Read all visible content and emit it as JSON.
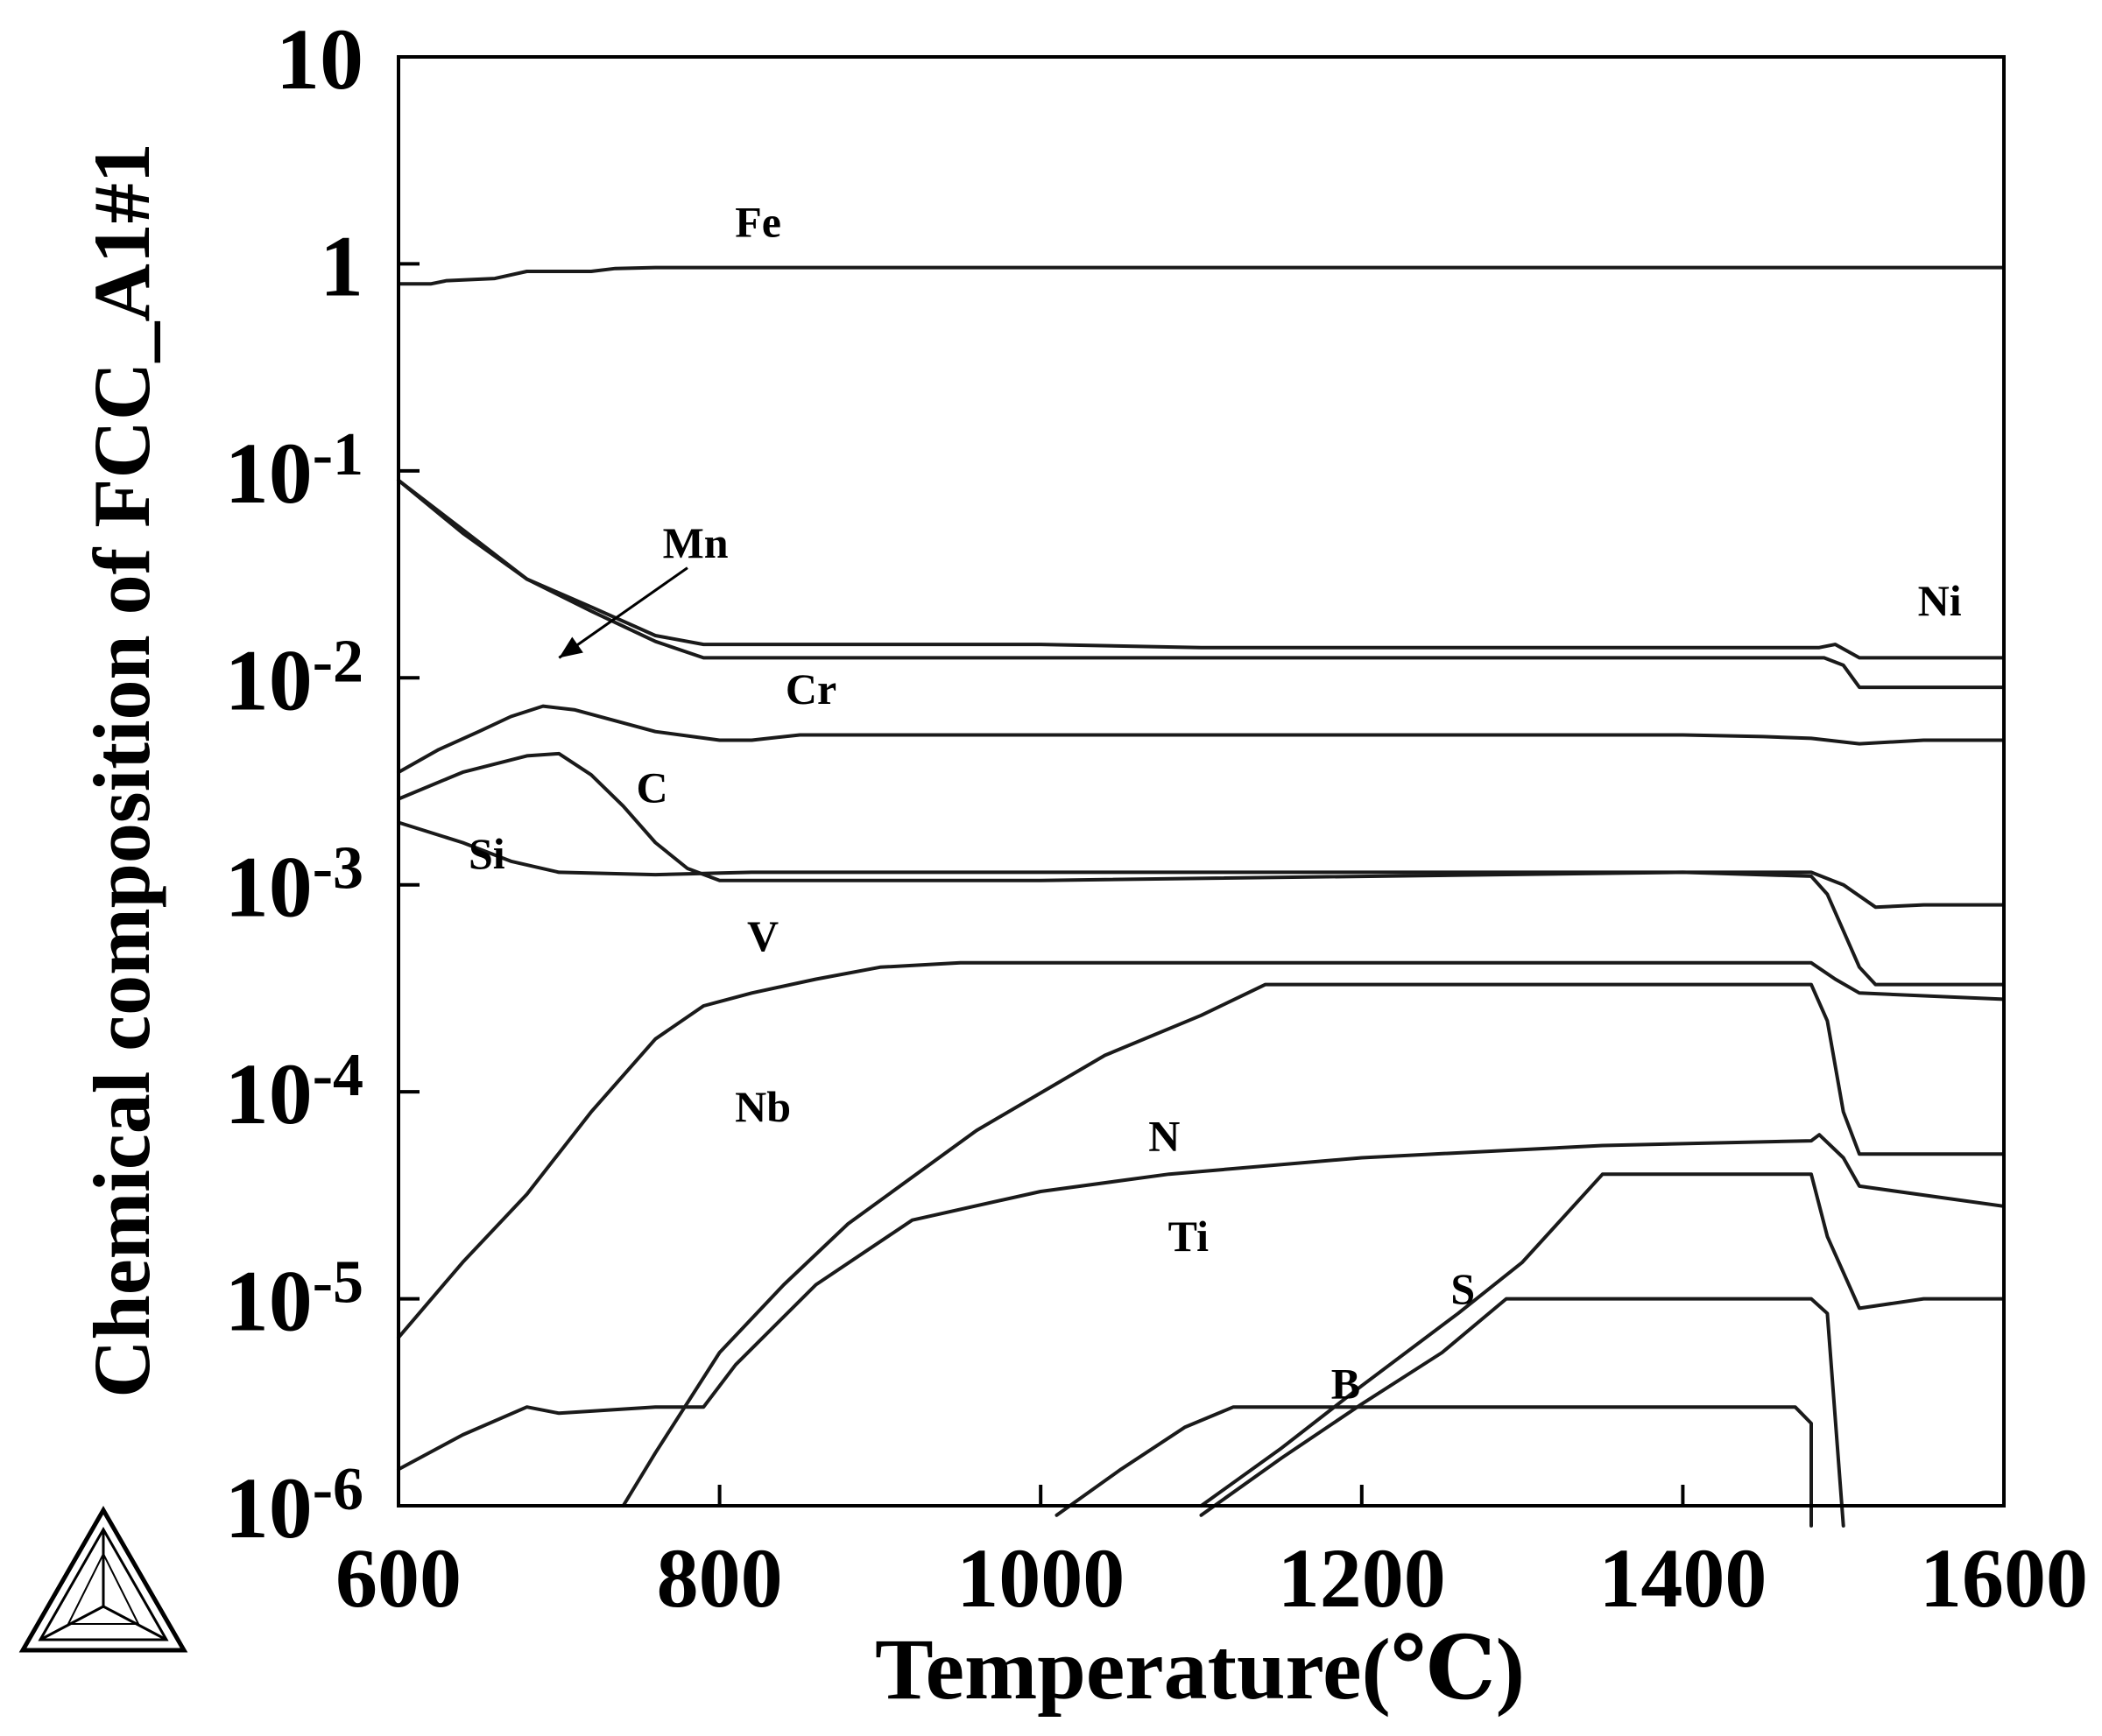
{
  "chart_data": {
    "type": "line",
    "xlabel": "Temperature(℃)",
    "ylabel": "Chemical composition of FCC_A1#1",
    "xlim": [
      600,
      1600
    ],
    "ylim": [
      1e-06,
      10
    ],
    "yscale": "log",
    "grid": false,
    "x_ticks": [
      {
        "value": 600,
        "label": "600"
      },
      {
        "value": 800,
        "label": "800"
      },
      {
        "value": 1000,
        "label": "1000"
      },
      {
        "value": 1200,
        "label": "1200"
      },
      {
        "value": 1400,
        "label": "1400"
      },
      {
        "value": 1600,
        "label": "1600"
      }
    ],
    "y_ticks": [
      {
        "value": 10,
        "base": "10",
        "exp": ""
      },
      {
        "value": 1,
        "base": "1",
        "exp": ""
      },
      {
        "value": 0.1,
        "base": "10",
        "exp": "-1"
      },
      {
        "value": 0.01,
        "base": "10",
        "exp": "-2"
      },
      {
        "value": 0.001,
        "base": "10",
        "exp": "-3"
      },
      {
        "value": 0.0001,
        "base": "10",
        "exp": "-4"
      },
      {
        "value": 1e-05,
        "base": "10",
        "exp": "-5"
      },
      {
        "value": 1e-06,
        "base": "10",
        "exp": "-6"
      }
    ],
    "series": [
      {
        "name": "Fe",
        "label_pos": [
          824,
          1.35
        ],
        "points": [
          [
            600,
            0.8
          ],
          [
            620,
            0.8
          ],
          [
            630,
            0.83
          ],
          [
            660,
            0.85
          ],
          [
            680,
            0.92
          ],
          [
            720,
            0.92
          ],
          [
            735,
            0.95
          ],
          [
            760,
            0.96
          ],
          [
            1600,
            0.96
          ]
        ]
      },
      {
        "name": "Ni",
        "label_pos": [
          1560,
          0.02
        ],
        "points": [
          [
            600,
            0.09
          ],
          [
            640,
            0.05
          ],
          [
            680,
            0.03
          ],
          [
            720,
            0.022
          ],
          [
            760,
            0.016
          ],
          [
            790,
            0.0145
          ],
          [
            1000,
            0.0145
          ],
          [
            1100,
            0.014
          ],
          [
            1485,
            0.014
          ],
          [
            1495,
            0.0145
          ],
          [
            1510,
            0.0125
          ],
          [
            1600,
            0.0125
          ]
        ]
      },
      {
        "name": "Mn",
        "label_pos": [
          785,
          0.038
        ],
        "arrow_from": [
          780,
          0.034
        ],
        "arrow_to": [
          700,
          0.0125
        ],
        "points": [
          [
            600,
            0.09
          ],
          [
            640,
            0.052
          ],
          [
            680,
            0.03
          ],
          [
            720,
            0.021
          ],
          [
            760,
            0.015
          ],
          [
            790,
            0.0125
          ],
          [
            1000,
            0.0125
          ],
          [
            1488,
            0.0125
          ],
          [
            1500,
            0.0115
          ],
          [
            1510,
            0.009
          ],
          [
            1600,
            0.009
          ]
        ]
      },
      {
        "name": "Cr",
        "label_pos": [
          857,
          0.0075
        ],
        "points": [
          [
            600,
            0.0035
          ],
          [
            625,
            0.0045
          ],
          [
            650,
            0.0055
          ],
          [
            670,
            0.0065
          ],
          [
            690,
            0.0073
          ],
          [
            710,
            0.007
          ],
          [
            760,
            0.0055
          ],
          [
            800,
            0.005
          ],
          [
            820,
            0.005
          ],
          [
            850,
            0.0053
          ],
          [
            1400,
            0.0053
          ],
          [
            1450,
            0.0052
          ],
          [
            1480,
            0.0051
          ],
          [
            1510,
            0.0048
          ],
          [
            1550,
            0.005
          ],
          [
            1600,
            0.005
          ]
        ]
      },
      {
        "name": "C",
        "label_pos": [
          758,
          0.0025
        ],
        "points": [
          [
            600,
            0.0026
          ],
          [
            640,
            0.0035
          ],
          [
            680,
            0.0042
          ],
          [
            700,
            0.0043
          ],
          [
            720,
            0.0034
          ],
          [
            740,
            0.0024
          ],
          [
            760,
            0.0016
          ],
          [
            780,
            0.0012
          ],
          [
            800,
            0.00105
          ],
          [
            1000,
            0.00105
          ],
          [
            1400,
            0.00115
          ],
          [
            1480,
            0.0011
          ],
          [
            1490,
            0.0009
          ],
          [
            1510,
            0.0004
          ],
          [
            1520,
            0.00033
          ],
          [
            1600,
            0.00033
          ]
        ]
      },
      {
        "name": "Si",
        "label_pos": [
          655,
          0.0012
        ],
        "points": [
          [
            600,
            0.002
          ],
          [
            640,
            0.0016
          ],
          [
            670,
            0.0013
          ],
          [
            700,
            0.00115
          ],
          [
            760,
            0.00112
          ],
          [
            820,
            0.00115
          ],
          [
            1000,
            0.00115
          ],
          [
            1200,
            0.00115
          ],
          [
            1480,
            0.00115
          ],
          [
            1500,
            0.001
          ],
          [
            1520,
            0.00078
          ],
          [
            1550,
            0.0008
          ],
          [
            1600,
            0.0008
          ]
        ]
      },
      {
        "name": "V",
        "label_pos": [
          827,
          0.00048
        ],
        "points": [
          [
            600,
            6.5e-06
          ],
          [
            640,
            1.5e-05
          ],
          [
            680,
            3.2e-05
          ],
          [
            720,
            8e-05
          ],
          [
            760,
            0.00018
          ],
          [
            790,
            0.00026
          ],
          [
            820,
            0.0003
          ],
          [
            860,
            0.00035
          ],
          [
            900,
            0.0004
          ],
          [
            950,
            0.00042
          ],
          [
            1480,
            0.00042
          ],
          [
            1495,
            0.00035
          ],
          [
            1510,
            0.0003
          ],
          [
            1600,
            0.00028
          ]
        ]
      },
      {
        "name": "Nb",
        "label_pos": [
          827,
          7.2e-05
        ],
        "points": [
          [
            740,
            1e-06
          ],
          [
            760,
            1.8e-06
          ],
          [
            800,
            5.5e-06
          ],
          [
            840,
            1.17e-05
          ],
          [
            880,
            2.3e-05
          ],
          [
            960,
            6.5e-05
          ],
          [
            1040,
            0.00015
          ],
          [
            1100,
            0.000234
          ],
          [
            1140,
            0.00033
          ],
          [
            1400,
            0.00033
          ],
          [
            1480,
            0.00033
          ],
          [
            1490,
            0.00022
          ],
          [
            1500,
            8e-05
          ],
          [
            1510,
            5e-05
          ],
          [
            1600,
            5e-05
          ]
        ]
      },
      {
        "name": "N",
        "label_pos": [
          1077,
          5.2e-05
        ],
        "points": [
          [
            600,
            1.5e-06
          ],
          [
            640,
            2.2e-06
          ],
          [
            680,
            3e-06
          ],
          [
            700,
            2.8e-06
          ],
          [
            760,
            3e-06
          ],
          [
            790,
            3e-06
          ],
          [
            810,
            4.8e-06
          ],
          [
            860,
            1.17e-05
          ],
          [
            920,
            2.4e-05
          ],
          [
            1000,
            3.3e-05
          ],
          [
            1080,
            4e-05
          ],
          [
            1200,
            4.8e-05
          ],
          [
            1350,
            5.5e-05
          ],
          [
            1480,
            5.8e-05
          ],
          [
            1485,
            6.2e-05
          ],
          [
            1500,
            4.8e-05
          ],
          [
            1510,
            3.5e-05
          ],
          [
            1600,
            2.8e-05
          ]
        ]
      },
      {
        "name": "Ti",
        "label_pos": [
          1092,
          1.7e-05
        ],
        "points": [
          [
            1100,
            1e-06
          ],
          [
            1150,
            1.9e-06
          ],
          [
            1200,
            3.8e-06
          ],
          [
            1260,
            8.5e-06
          ],
          [
            1300,
            1.5e-05
          ],
          [
            1350,
            4e-05
          ],
          [
            1400,
            4e-05
          ],
          [
            1480,
            4e-05
          ],
          [
            1490,
            2e-05
          ],
          [
            1510,
            9e-06
          ],
          [
            1550,
            1e-05
          ],
          [
            1600,
            1e-05
          ]
        ]
      },
      {
        "name": "S",
        "label_pos": [
          1263,
          9.5e-06
        ],
        "points": [
          [
            1100,
            9e-07
          ],
          [
            1150,
            1.7e-06
          ],
          [
            1200,
            3.1e-06
          ],
          [
            1250,
            5.5e-06
          ],
          [
            1290,
            1e-05
          ],
          [
            1400,
            1e-05
          ],
          [
            1480,
            1e-05
          ],
          [
            1490,
            8.5e-06
          ],
          [
            1500,
            8e-07
          ]
        ]
      },
      {
        "name": "B",
        "label_pos": [
          1190,
          3.3e-06
        ],
        "points": [
          [
            1010,
            9e-07
          ],
          [
            1050,
            1.5e-06
          ],
          [
            1090,
            2.4e-06
          ],
          [
            1120,
            3e-06
          ],
          [
            1400,
            3e-06
          ],
          [
            1470,
            3e-06
          ],
          [
            1480,
            2.5e-06
          ],
          [
            1480,
            8e-07
          ]
        ]
      }
    ]
  }
}
